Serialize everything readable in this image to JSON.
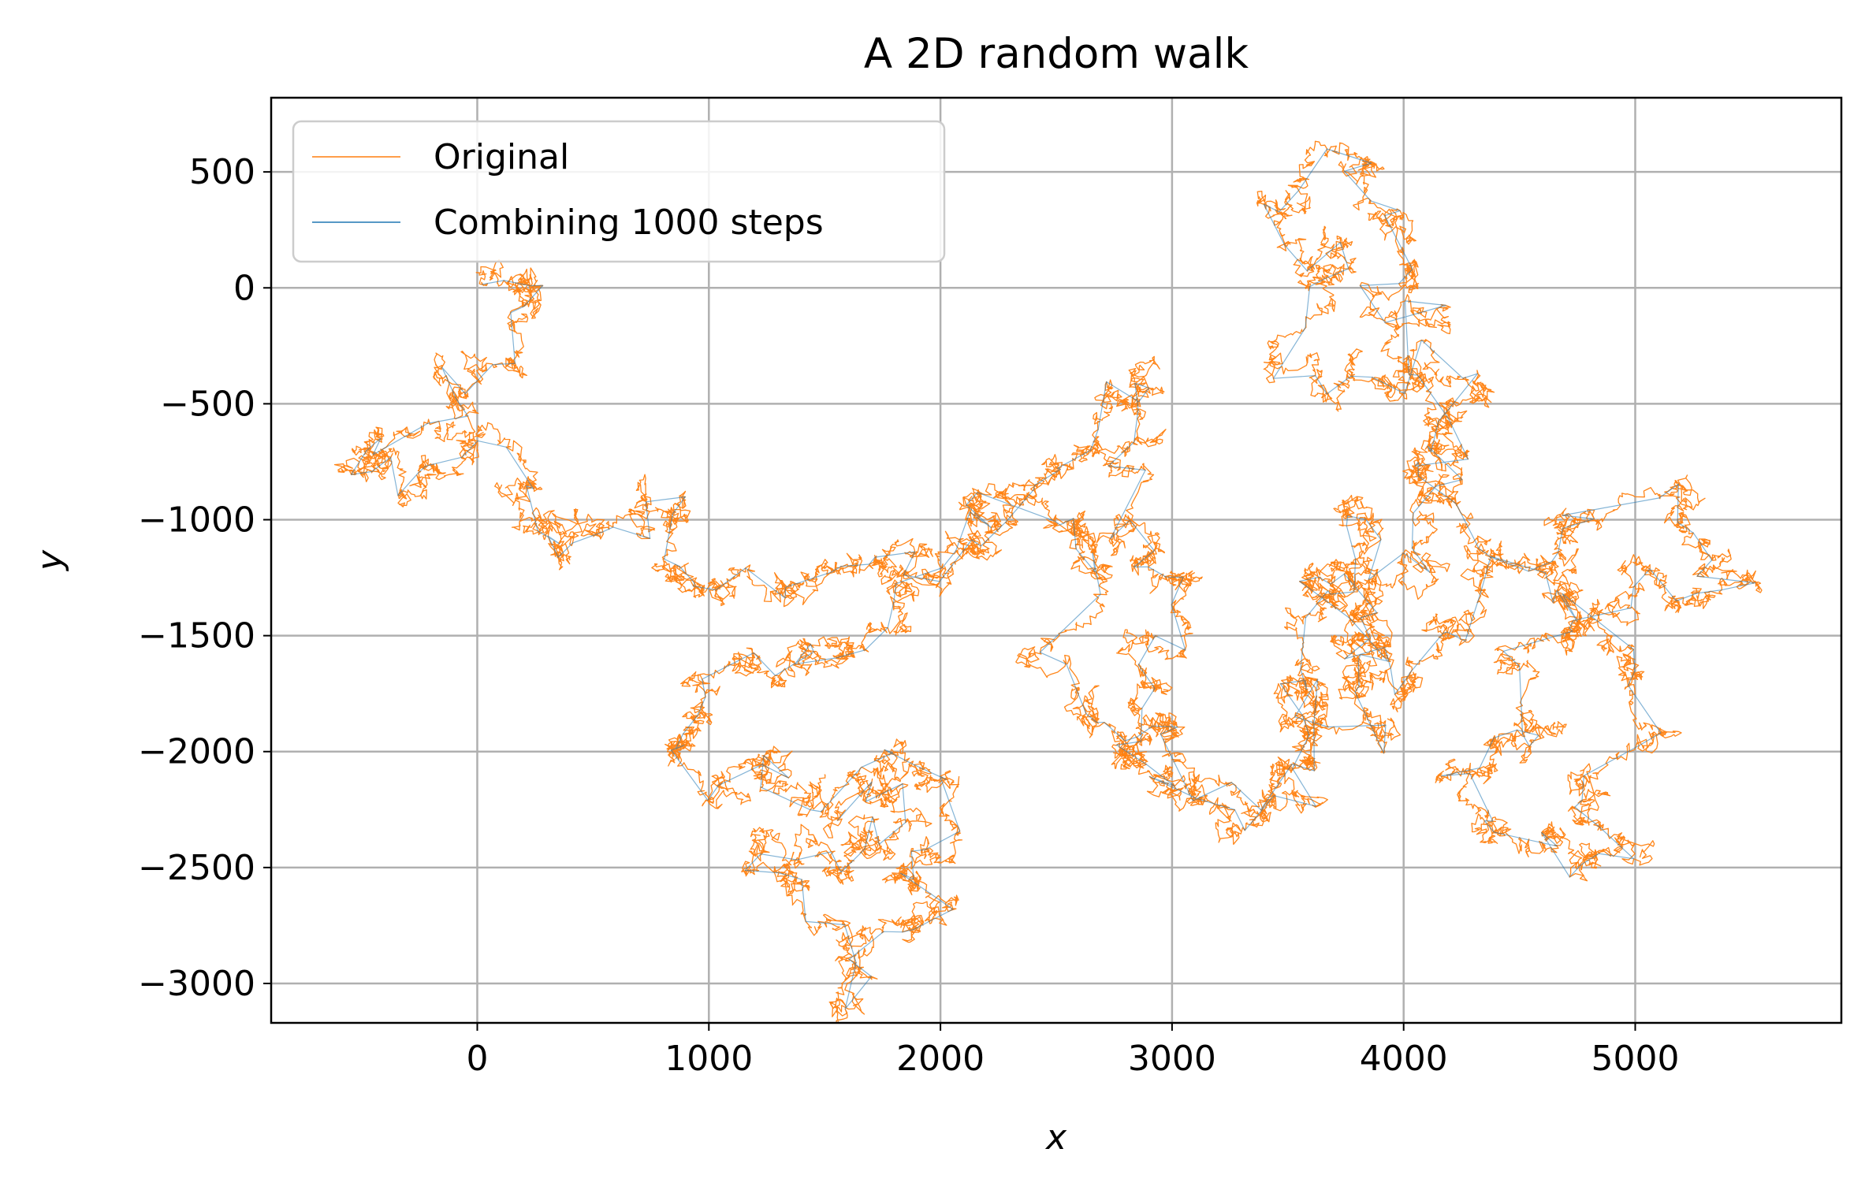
{
  "chart_data": {
    "type": "line",
    "title": "A 2D random walk",
    "xlabel": "x",
    "ylabel": "y",
    "xlim": [
      -890,
      5890
    ],
    "ylim": [
      -3170,
      820
    ],
    "xticks": [
      0,
      1000,
      2000,
      3000,
      4000,
      5000
    ],
    "yticks": [
      500,
      0,
      -500,
      -1000,
      -1500,
      -2000,
      -2500,
      -3000
    ],
    "grid": true,
    "legend_position": "upper left",
    "series": [
      {
        "name": "Original",
        "color": "#ff7f0e",
        "style": "dense random walk path",
        "waypoints": [
          [
            0,
            0
          ],
          [
            150,
            50
          ],
          [
            280,
            10
          ],
          [
            130,
            -130
          ],
          [
            -20,
            -300
          ],
          [
            -160,
            -380
          ],
          [
            -100,
            -500
          ],
          [
            -250,
            -620
          ],
          [
            -450,
            -720
          ],
          [
            -580,
            -760
          ],
          [
            -350,
            -720
          ],
          [
            -150,
            -800
          ],
          [
            0,
            -700
          ],
          [
            200,
            -760
          ],
          [
            250,
            -1000
          ],
          [
            380,
            -1060
          ],
          [
            350,
            -1120
          ],
          [
            550,
            -1000
          ],
          [
            720,
            -1040
          ],
          [
            900,
            -900
          ],
          [
            850,
            -1200
          ],
          [
            1050,
            -1300
          ],
          [
            1250,
            -1320
          ],
          [
            1500,
            -1250
          ],
          [
            1650,
            -1150
          ],
          [
            1850,
            -1100
          ],
          [
            2000,
            -1250
          ],
          [
            2150,
            -1150
          ],
          [
            2250,
            -1050
          ],
          [
            2300,
            -950
          ],
          [
            2450,
            -800
          ],
          [
            2650,
            -700
          ],
          [
            2800,
            -500
          ],
          [
            2900,
            -350
          ],
          [
            2850,
            -800
          ],
          [
            2750,
            -1000
          ],
          [
            2900,
            -1200
          ],
          [
            3100,
            -1250
          ],
          [
            2900,
            -1500
          ],
          [
            2850,
            -1750
          ],
          [
            2800,
            -2000
          ],
          [
            3000,
            -2100
          ],
          [
            3200,
            -2200
          ],
          [
            3400,
            -2200
          ],
          [
            3600,
            -2000
          ],
          [
            3550,
            -1700
          ],
          [
            3500,
            -1400
          ],
          [
            3700,
            -1300
          ],
          [
            3850,
            -1100
          ],
          [
            3800,
            -900
          ],
          [
            4000,
            -1200
          ],
          [
            4100,
            -1000
          ],
          [
            4250,
            -800
          ],
          [
            4150,
            -600
          ],
          [
            4300,
            -400
          ],
          [
            4150,
            -350
          ],
          [
            3900,
            -400
          ],
          [
            3600,
            -300
          ],
          [
            3700,
            -100
          ],
          [
            3750,
            200
          ],
          [
            3500,
            200
          ],
          [
            3850,
            550
          ],
          [
            4000,
            300
          ],
          [
            4050,
            100
          ],
          [
            4200,
            -200
          ],
          [
            4000,
            -350
          ],
          [
            4200,
            -550
          ],
          [
            4300,
            -1100
          ],
          [
            4500,
            -1200
          ],
          [
            4700,
            -1050
          ],
          [
            5000,
            -900
          ],
          [
            5300,
            -1100
          ],
          [
            5500,
            -1250
          ],
          [
            5000,
            -1300
          ],
          [
            4700,
            -1500
          ],
          [
            4500,
            -1650
          ],
          [
            4600,
            -1900
          ],
          [
            4400,
            -2000
          ],
          [
            4200,
            -2100
          ],
          [
            4350,
            -2300
          ],
          [
            4600,
            -2350
          ],
          [
            4800,
            -2450
          ],
          [
            4950,
            -2400
          ],
          [
            4800,
            -2050
          ],
          [
            5000,
            -1750
          ],
          [
            4900,
            -1500
          ],
          [
            4700,
            -1300
          ],
          [
            4400,
            -1150
          ],
          [
            4200,
            -1500
          ],
          [
            4000,
            -1700
          ],
          [
            3700,
            -1500
          ],
          [
            3900,
            -1300
          ],
          [
            3600,
            -1200
          ],
          [
            3800,
            -1600
          ],
          [
            3950,
            -1900
          ],
          [
            3650,
            -1800
          ],
          [
            3600,
            -2050
          ],
          [
            3350,
            -2250
          ],
          [
            3100,
            -2150
          ],
          [
            2950,
            -1900
          ],
          [
            2800,
            -2000
          ],
          [
            2650,
            -1450
          ],
          [
            2700,
            -1200
          ],
          [
            2600,
            -1000
          ],
          [
            2450,
            -950
          ],
          [
            2200,
            -1000
          ],
          [
            2050,
            -1200
          ],
          [
            1850,
            -1300
          ],
          [
            1700,
            -1450
          ],
          [
            1600,
            -1600
          ],
          [
            1450,
            -1550
          ],
          [
            1300,
            -1700
          ],
          [
            1100,
            -1600
          ],
          [
            950,
            -1850
          ],
          [
            850,
            -2000
          ],
          [
            1000,
            -2200
          ],
          [
            1150,
            -2050
          ],
          [
            1300,
            -2000
          ],
          [
            1450,
            -2200
          ],
          [
            1600,
            -2100
          ],
          [
            1800,
            -2000
          ],
          [
            2000,
            -2150
          ],
          [
            1950,
            -2400
          ],
          [
            1800,
            -2550
          ],
          [
            2050,
            -2650
          ],
          [
            1850,
            -2750
          ],
          [
            1650,
            -2950
          ],
          [
            1500,
            -2700
          ],
          [
            1400,
            -2550
          ],
          [
            1200,
            -2450
          ],
          [
            1400,
            -2350
          ],
          [
            1550,
            -2500
          ],
          [
            1700,
            -2300
          ],
          [
            1900,
            -2300
          ],
          [
            1750,
            -2150
          ],
          [
            1500,
            -2100
          ]
        ]
      },
      {
        "name": "Combining 1000 steps",
        "color": "#1f77b4",
        "style": "coarse path overlay"
      }
    ]
  },
  "colors": {
    "original": "#ff7f0e",
    "combined": "#1f77b4",
    "grid": "#b0b0b0"
  }
}
